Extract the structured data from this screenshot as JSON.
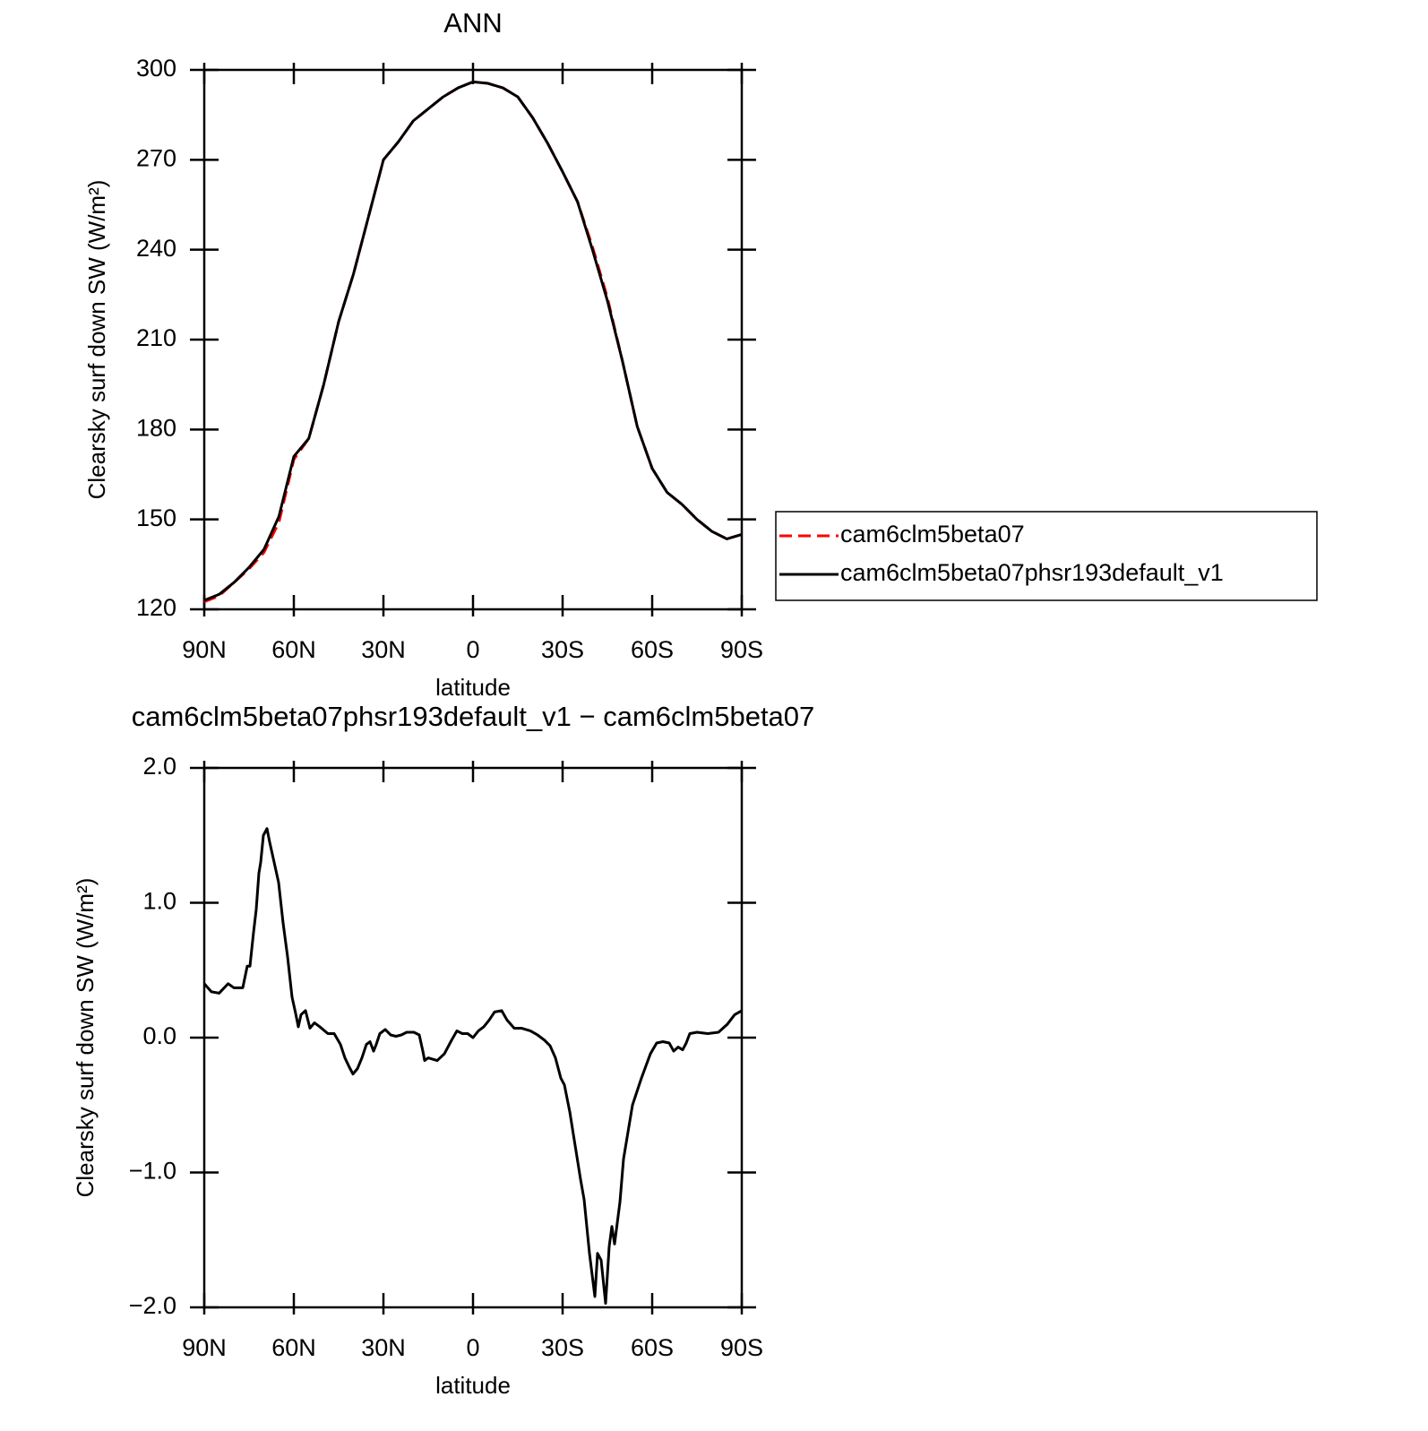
{
  "chart_data": [
    {
      "type": "line",
      "title": "ANN",
      "xlabel": "latitude",
      "ylabel": "Clearsky surf down SW (W/m²)",
      "x": [
        90,
        85,
        80,
        75,
        70,
        65,
        60,
        55,
        50,
        45,
        40,
        35,
        30,
        25,
        20,
        15,
        10,
        5,
        0,
        -5,
        -10,
        -15,
        -20,
        -25,
        -30,
        -35,
        -40,
        -45,
        -50,
        -55,
        -60,
        -65,
        -70,
        -75,
        -80,
        -85,
        -90
      ],
      "series": [
        {
          "name": "cam6clm5beta07",
          "color": "#ff0000",
          "dashed": true,
          "values": [
            122.5,
            124.5,
            129,
            133.5,
            139,
            149,
            170,
            177,
            195,
            216,
            232,
            251,
            270,
            276,
            283,
            287,
            291,
            294,
            296,
            295.5,
            294,
            291,
            284,
            275.5,
            266,
            256,
            241,
            224,
            203,
            181,
            167,
            159,
            155,
            150,
            146,
            143.5,
            145
          ]
        },
        {
          "name": "cam6clm5beta07phsr193default_v1",
          "color": "#000000",
          "dashed": false,
          "values": [
            123,
            125,
            129,
            134,
            140,
            151,
            171,
            177,
            195,
            216,
            232,
            251,
            270,
            276,
            283,
            287,
            291,
            294,
            296,
            295.5,
            294,
            291,
            284,
            275.5,
            266,
            256,
            240,
            223,
            203,
            181,
            167,
            159,
            155,
            150,
            146,
            143.5,
            145
          ]
        }
      ],
      "xlim": [
        90,
        -90
      ],
      "xticks": [
        {
          "value": 90,
          "label": "90N"
        },
        {
          "value": 60,
          "label": "60N"
        },
        {
          "value": 30,
          "label": "30N"
        },
        0,
        {
          "value": -30,
          "label": "30S"
        },
        {
          "value": -60,
          "label": "60S"
        },
        {
          "value": -90,
          "label": "90S"
        }
      ],
      "ylim": [
        120,
        300
      ],
      "yticks": [
        120,
        150,
        180,
        210,
        240,
        270,
        300
      ],
      "legend": "right"
    },
    {
      "type": "line",
      "title": "cam6clm5beta07phsr193default_v1 − cam6clm5beta07",
      "xlabel": "latitude",
      "ylabel": "Clearsky surf down SW (W/m²)",
      "x": [
        90,
        87.6,
        85,
        82,
        80.1,
        77.1,
        75.6,
        74.7,
        73.5,
        72.6,
        71.7,
        71.1,
        70.2,
        69,
        68.1,
        66.6,
        65.1,
        63.6,
        62.1,
        60.6,
        59.4,
        58.5,
        57.6,
        56.1,
        54.6,
        53.1,
        51.3,
        48.6,
        46.5,
        44.4,
        42.9,
        41.4,
        40.2,
        38.7,
        37.2,
        35.7,
        34.5,
        33.3,
        32.4,
        31.2,
        29.4,
        27.6,
        25.8,
        24,
        22.2,
        19.8,
        18,
        16.8,
        16.2,
        15,
        12,
        9.6,
        7.2,
        5.4,
        3.6,
        1.8,
        0,
        -1.8,
        -3.6,
        -5.4,
        -7.2,
        -9.6,
        -11.4,
        -13.8,
        -16.2,
        -19.2,
        -21.6,
        -24,
        -25.8,
        -27.6,
        -29.4,
        -30.6,
        -32.4,
        -34.2,
        -36,
        -37.2,
        -39,
        -40.8,
        -41.7,
        -42.9,
        -44.4,
        -45.6,
        -46.5,
        -47.4,
        -49.2,
        -50.4,
        -53.4,
        -56.4,
        -59.4,
        -61.5,
        -63.6,
        -65.7,
        -67.2,
        -68.7,
        -70.2,
        -71.4,
        -72.6,
        -75,
        -78.6,
        -82.2,
        -85.2,
        -87.6,
        -90
      ],
      "series": [
        {
          "color": "#000000",
          "dashed": false,
          "values": [
            0.4,
            0.34,
            0.33,
            0.4,
            0.37,
            0.37,
            0.53,
            0.53,
            0.78,
            0.95,
            1.22,
            1.3,
            1.5,
            1.55,
            1.45,
            1.3,
            1.15,
            0.85,
            0.6,
            0.3,
            0.18,
            0.08,
            0.17,
            0.2,
            0.07,
            0.11,
            0.08,
            0.03,
            0.03,
            -0.05,
            -0.15,
            -0.22,
            -0.27,
            -0.23,
            -0.15,
            -0.05,
            -0.03,
            -0.1,
            -0.05,
            0.03,
            0.06,
            0.02,
            0.01,
            0.02,
            0.04,
            0.04,
            0.02,
            -0.1,
            -0.17,
            -0.15,
            -0.17,
            -0.12,
            -0.02,
            0.05,
            0.03,
            0.03,
            0.0,
            0.05,
            0.08,
            0.13,
            0.19,
            0.2,
            0.13,
            0.07,
            0.07,
            0.05,
            0.02,
            -0.02,
            -0.06,
            -0.15,
            -0.3,
            -0.35,
            -0.55,
            -0.8,
            -1.05,
            -1.2,
            -1.6,
            -1.92,
            -1.6,
            -1.65,
            -1.97,
            -1.55,
            -1.4,
            -1.53,
            -1.22,
            -0.9,
            -0.5,
            -0.3,
            -0.12,
            -0.04,
            -0.03,
            -0.04,
            -0.1,
            -0.07,
            -0.09,
            -0.04,
            0.03,
            0.04,
            0.03,
            0.04,
            0.1,
            0.17,
            0.2
          ]
        }
      ],
      "xlim": [
        90,
        -90
      ],
      "xticks": [
        {
          "value": 90,
          "label": "90N"
        },
        {
          "value": 60,
          "label": "60N"
        },
        {
          "value": 30,
          "label": "30N"
        },
        0,
        {
          "value": -30,
          "label": "30S"
        },
        {
          "value": -60,
          "label": "60S"
        },
        {
          "value": -90,
          "label": "90S"
        }
      ],
      "ylim": [
        -2,
        2
      ],
      "yticks": [
        {
          "value": -2,
          "label": "−2.0"
        },
        {
          "value": -1,
          "label": "−1.0"
        },
        {
          "value": 0,
          "label": "0.0"
        },
        {
          "value": 1,
          "label": "1.0"
        },
        {
          "value": 2,
          "label": "2.0"
        }
      ]
    }
  ]
}
